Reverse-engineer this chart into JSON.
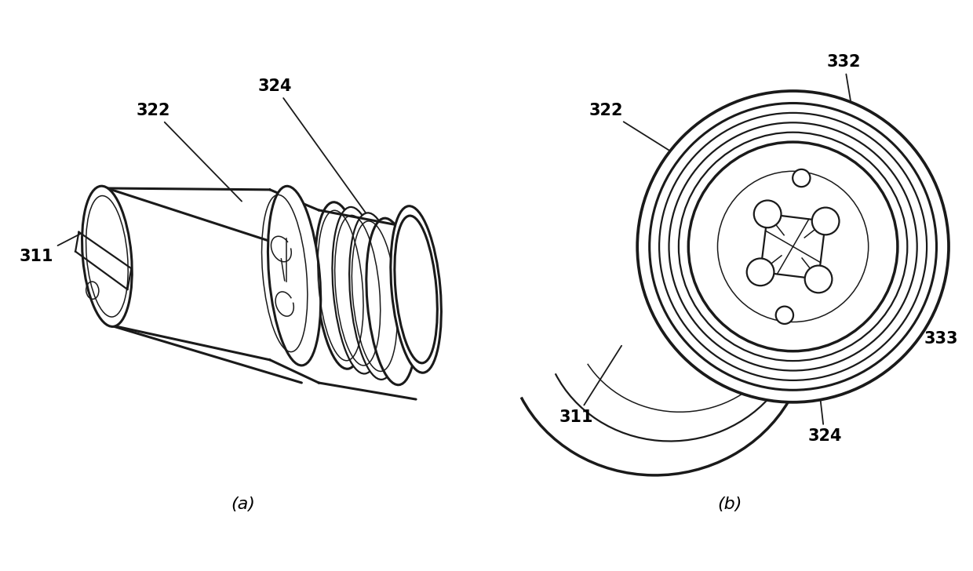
{
  "bg_color": "#ffffff",
  "line_color": "#1a1a1a",
  "label_color": "#000000",
  "fig_width": 12.4,
  "fig_height": 7.28,
  "dpi": 100,
  "label_a": "(a)",
  "label_b": "(b)"
}
